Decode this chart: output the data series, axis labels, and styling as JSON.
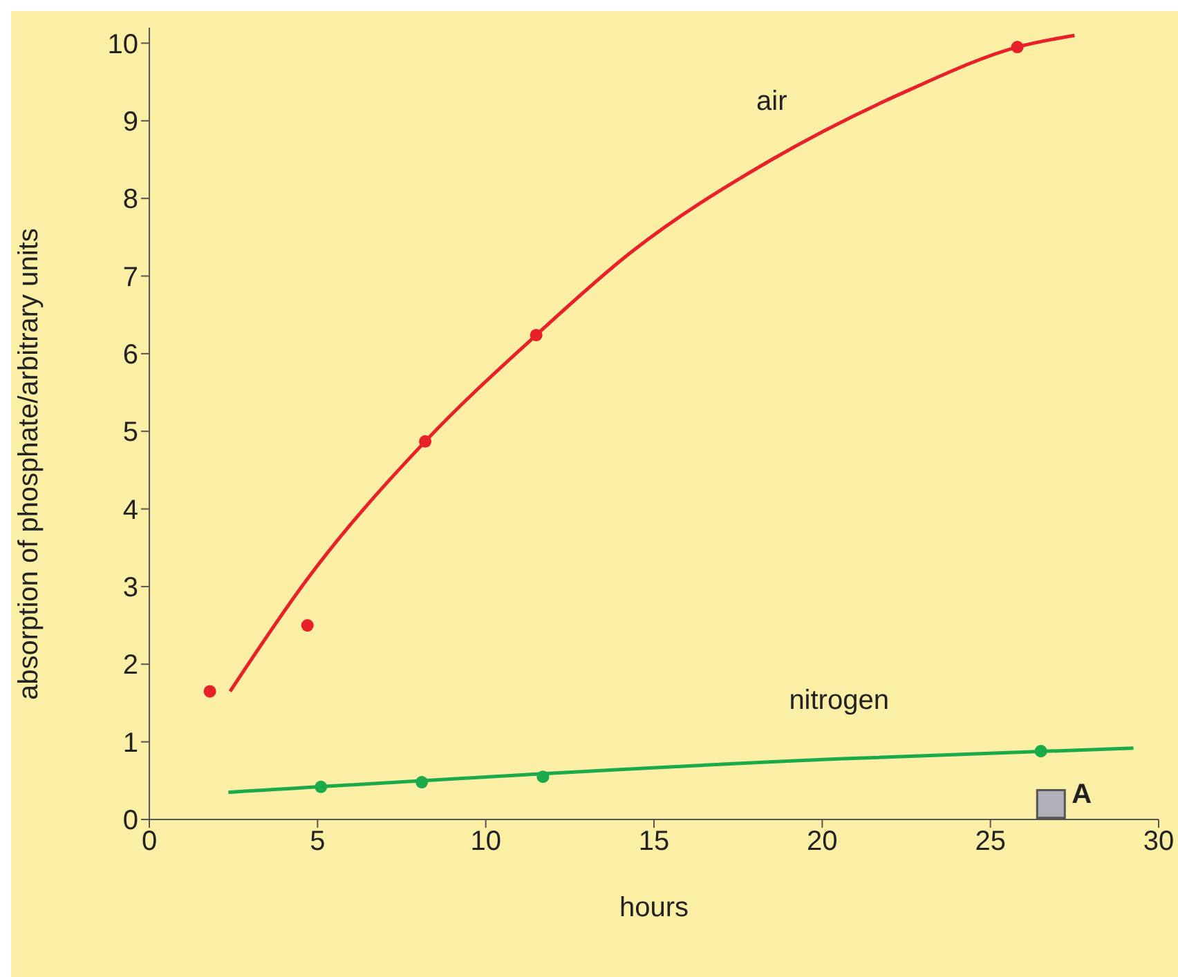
{
  "chart_data": {
    "type": "line",
    "xlabel": "hours",
    "ylabel": "absorption of phosphate/arbitrary units",
    "xlim": [
      0,
      30
    ],
    "xticks": [
      0,
      5,
      10,
      15,
      20,
      25,
      30
    ],
    "ylim": [
      0,
      10.2
    ],
    "yticks": [
      0,
      1,
      2,
      3,
      4,
      5,
      6,
      7,
      8,
      9,
      10
    ],
    "grid": false,
    "legend": false,
    "series": [
      {
        "name": "air",
        "color": "#e8202a",
        "marker": "none",
        "x": [
          2.4,
          4.7,
          8.2,
          11.5,
          14.3,
          18.5,
          22.6,
          25.8,
          27.5
        ],
        "values": [
          1.65,
          3.1,
          4.87,
          6.24,
          7.3,
          8.5,
          9.4,
          9.95,
          10.1
        ]
      },
      {
        "type": "scatter",
        "color": "#e8202a",
        "marker": "circle",
        "x": [
          1.8,
          4.7,
          8.2,
          11.5,
          25.8
        ],
        "values": [
          1.65,
          2.5,
          4.87,
          6.24,
          9.95
        ]
      },
      {
        "name": "nitrogen",
        "color": "#1aaa4a",
        "marker": "none",
        "x": [
          2.35,
          20.5,
          29.25
        ],
        "values": [
          0.35,
          0.78,
          0.92
        ]
      },
      {
        "type": "scatter",
        "color": "#1aaa4a",
        "marker": "circle",
        "x": [
          5.1,
          8.1,
          11.7,
          26.5
        ],
        "values": [
          0.42,
          0.48,
          0.55,
          0.88
        ]
      },
      {
        "type": "scatter",
        "color": "#b0b0b8",
        "marker": "square",
        "x": [
          26.8
        ],
        "values": [
          0.2
        ]
      }
    ],
    "annotations": [
      {
        "text": "A",
        "x": 26.8,
        "y": 0.2
      }
    ]
  }
}
